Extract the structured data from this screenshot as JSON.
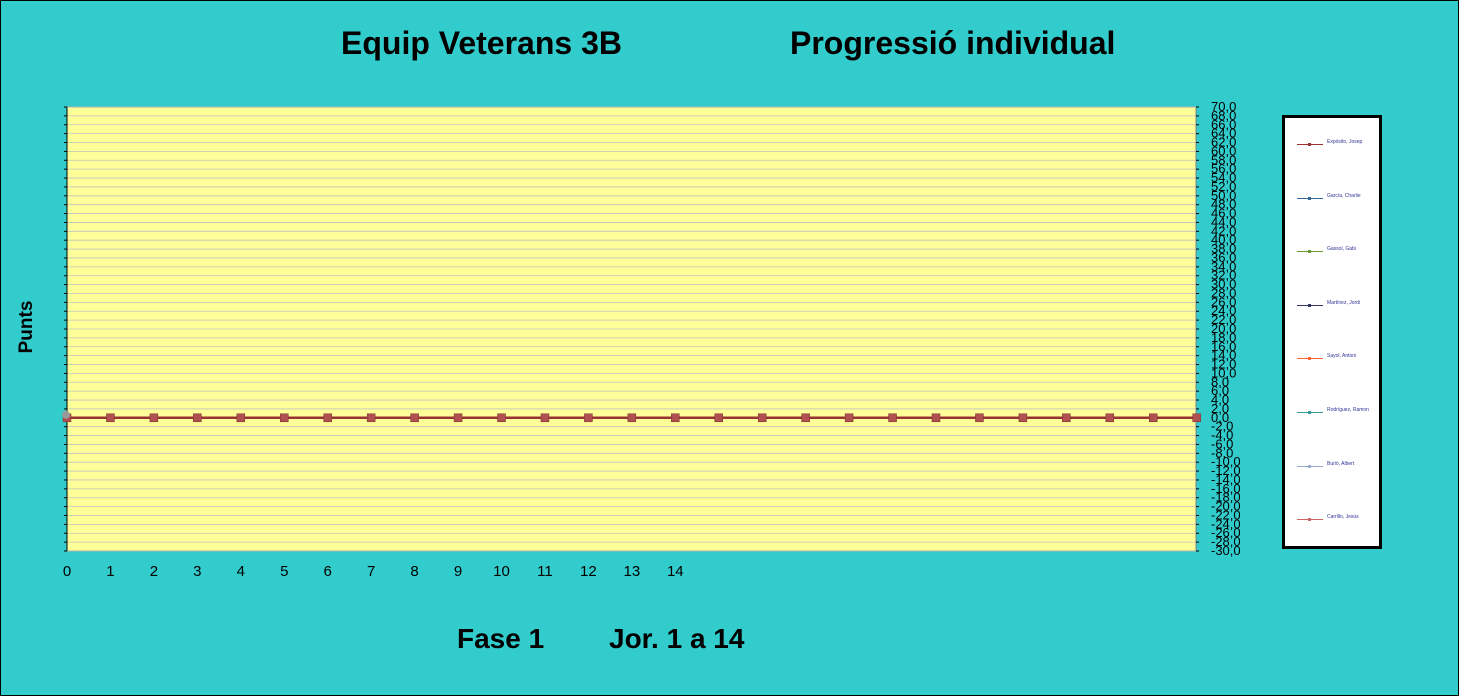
{
  "header": {
    "title_left": "Equip Veterans 3B",
    "title_right": "Progressió individual"
  },
  "footer": {
    "phase": "Fase 1",
    "rounds": "Jor.  1 a 14"
  },
  "colors": {
    "background": "#33CCCC",
    "plot_area": "#FFFF99",
    "gridline": "#C0C0C0"
  },
  "chart_data": {
    "type": "line",
    "title": "",
    "xlabel": "",
    "ylabel": "Punts",
    "x_tick_labels": [
      "0",
      "1",
      "2",
      "3",
      "4",
      "5",
      "6",
      "7",
      "8",
      "9",
      "10",
      "11",
      "12",
      "13",
      "14"
    ],
    "x": [
      0,
      1,
      2,
      3,
      4,
      5,
      6,
      7,
      8,
      9,
      10,
      11,
      12,
      13,
      14,
      15,
      16,
      17,
      18,
      19,
      20,
      21,
      22,
      23,
      24,
      25,
      26
    ],
    "ylim": [
      -30,
      70
    ],
    "ytick_step": 2,
    "ytick_decimals": 1,
    "ytick_decimal_separator": ",",
    "yaxis_position": "right",
    "grid": true,
    "legend_position": "right",
    "series": [
      {
        "name": "Expósito, Josep",
        "color": "#993333",
        "values": [
          0,
          0,
          0,
          0,
          0,
          0,
          0,
          0,
          0,
          0,
          0,
          0,
          0,
          0,
          0,
          0,
          0,
          0,
          0,
          0,
          0,
          0,
          0,
          0,
          0,
          0,
          0
        ]
      },
      {
        "name": "García, Charlie",
        "color": "#336699",
        "values": [
          0,
          0,
          0,
          0,
          0,
          0,
          0,
          0,
          0,
          0,
          0,
          0,
          0,
          0,
          0,
          0,
          0,
          0,
          0,
          0,
          0,
          0,
          0,
          0,
          0,
          0,
          0
        ]
      },
      {
        "name": "Gassol, Gabi",
        "color": "#669933",
        "values": [
          0,
          0,
          0,
          0,
          0,
          0,
          0,
          0,
          0,
          0,
          0,
          0,
          0,
          0,
          0,
          0,
          0,
          0,
          0,
          0,
          0,
          0,
          0,
          0,
          0,
          0,
          0
        ]
      },
      {
        "name": "Martínez, Jordi",
        "color": "#333366",
        "values": [
          0,
          0,
          0,
          0,
          0,
          0,
          0,
          0,
          0,
          0,
          0,
          0,
          0,
          0,
          0,
          0,
          0,
          0,
          0,
          0,
          0,
          0,
          0,
          0,
          0,
          0,
          0
        ]
      },
      {
        "name": "Sayol, Antoni",
        "color": "#FF6633",
        "values": [
          0,
          0,
          0,
          0,
          0,
          0,
          0,
          0,
          0,
          0,
          0,
          0,
          0,
          0,
          0,
          0,
          0,
          0,
          0,
          0,
          0,
          0,
          0,
          0,
          0,
          0,
          0
        ]
      },
      {
        "name": "Rodríguez, Ramon",
        "color": "#339999",
        "values": [
          0,
          0,
          0,
          0,
          0,
          0,
          0,
          0,
          0,
          0,
          0,
          0,
          0,
          0,
          0,
          0,
          0,
          0,
          0,
          0,
          0,
          0,
          0,
          0,
          0,
          0,
          0
        ]
      },
      {
        "name": "Burió, Albert",
        "color": "#99AACC",
        "values": [
          0,
          0,
          0,
          0,
          0,
          0,
          0,
          0,
          0,
          0,
          0,
          0,
          0,
          0,
          0,
          0,
          0,
          0,
          0,
          0,
          0,
          0,
          0,
          0,
          0,
          0,
          0
        ]
      },
      {
        "name": "Carrillo, Jesús",
        "color": "#CC6666",
        "values": [
          0,
          0,
          0,
          0,
          0,
          0,
          0,
          0,
          0,
          0,
          0,
          0,
          0,
          0,
          0,
          0,
          0,
          0,
          0,
          0,
          0,
          0,
          0,
          0,
          0,
          0,
          0
        ]
      }
    ]
  }
}
